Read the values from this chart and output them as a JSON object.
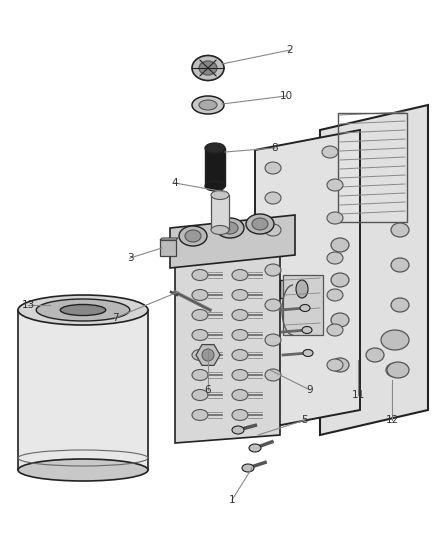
{
  "background_color": "#ffffff",
  "fig_width": 4.38,
  "fig_height": 5.33,
  "dpi": 100,
  "outline_color": "#222222",
  "gray_light": "#e8e8e8",
  "gray_mid": "#cccccc",
  "gray_dark": "#999999",
  "black_part": "#1a1a1a",
  "label_color": "#555555",
  "leader_color": "#888888"
}
